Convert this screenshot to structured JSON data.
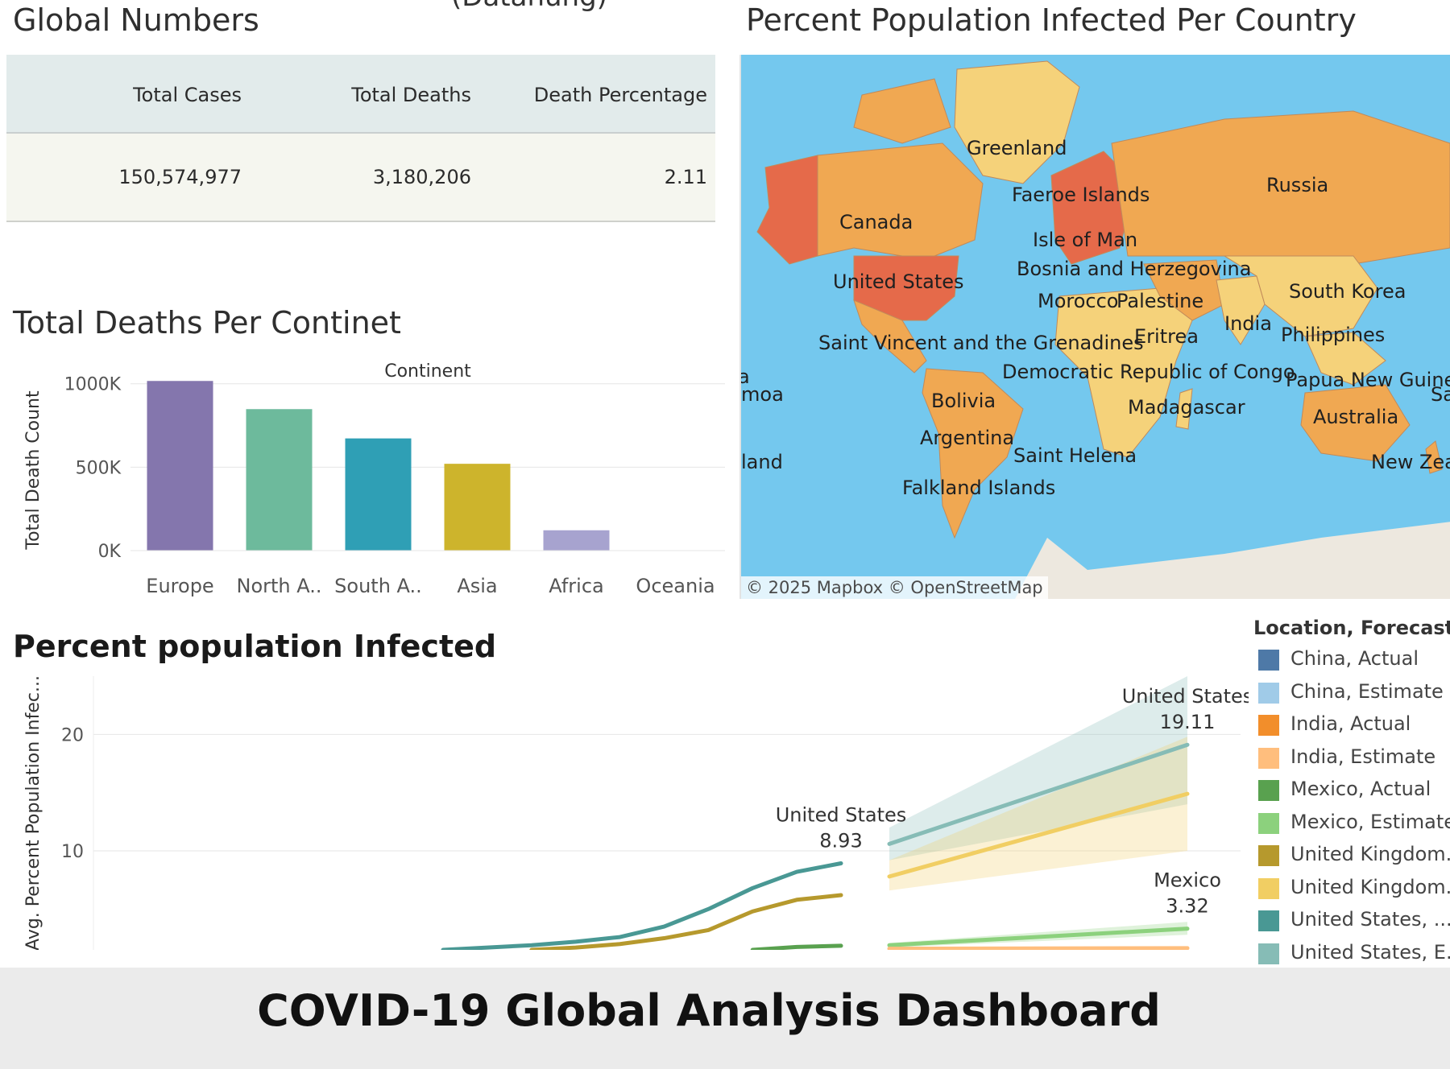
{
  "top_cut_text": "(Datahung)",
  "global_numbers": {
    "title": "Global Numbers",
    "headers": [
      "Total Cases",
      "Total Deaths",
      "Death Percentage"
    ],
    "values": [
      "150,574,977",
      "3,180,206",
      "2.11"
    ]
  },
  "map": {
    "title": "Percent Population Infected Per Country",
    "credit": "© 2025 Mapbox  © OpenStreetMap",
    "labels": [
      "Greenland",
      "Russia",
      "Faeroe Islands",
      "Canada",
      "Isle of Man",
      "Bosnia and Herzegovina",
      "United States",
      "South Korea",
      "Morocco",
      "Palestine",
      "India",
      "Philippines",
      "Saint Vincent and the Grenadines",
      "Eritrea",
      "a",
      "Democratic Republic of Congo",
      "moa",
      "Papua New Guinea",
      "Sa",
      "Bolivia",
      "Madagascar",
      "Australia",
      "Argentina",
      "land",
      "Saint Helena",
      "New Zea",
      "Falkland Islands"
    ],
    "colors": {
      "ocean": "#74c8ee",
      "low": "#f5d27a",
      "mid": "#f0a852",
      "high": "#e56a4a"
    }
  },
  "chart_data": [
    {
      "type": "bar",
      "title": "Total Deaths Per Continet",
      "header": "Continent",
      "ylabel": "Total Death Count",
      "categories": [
        "Europe",
        "North A..",
        "South A..",
        "Asia",
        "Africa",
        "Oceania"
      ],
      "values": [
        1016750,
        847942,
        672415,
        520286,
        121784,
        1046
      ],
      "colors": [
        "#8476ad",
        "#6dba9c",
        "#2f9fb5",
        "#cdb42c",
        "#a7a3cf",
        "#9ec5e8"
      ],
      "yticks": [
        "1000K",
        "500K",
        "0K"
      ],
      "ytick_values": [
        1000000,
        500000,
        0
      ],
      "ylim": [
        0,
        1100000
      ],
      "grid": true
    },
    {
      "type": "line",
      "title": "Percent population Infected",
      "ylabel": "Avg. Percent Population Infec...",
      "yticks": [
        "20",
        "10"
      ],
      "ytick_values": [
        20,
        10
      ],
      "ylim": [
        1.5,
        25
      ],
      "x_range": [
        0,
        15
      ],
      "legend_title": "Location, Forecast i...",
      "legend_placement": "right",
      "legend": [
        {
          "label": "China, Actual",
          "color": "#4e79a7"
        },
        {
          "label": "China, Estimate",
          "color": "#a0cbe8"
        },
        {
          "label": "India, Actual",
          "color": "#f28e2b"
        },
        {
          "label": "India, Estimate",
          "color": "#ffbe7d"
        },
        {
          "label": "Mexico, Actual",
          "color": "#59a14f"
        },
        {
          "label": "Mexico, Estimate",
          "color": "#8cd17d"
        },
        {
          "label": "United Kingdom...",
          "color": "#b6992d"
        },
        {
          "label": "United Kingdom...",
          "color": "#f1ce63"
        },
        {
          "label": "United States, ...",
          "color": "#499894"
        },
        {
          "label": "United States, E...",
          "color": "#86bcb6"
        }
      ],
      "series": [
        {
          "color": "#499894",
          "x": [
            0,
            1,
            2,
            3,
            4,
            5,
            6,
            7,
            8,
            9
          ],
          "y": [
            1.5,
            1.7,
            1.9,
            2.2,
            2.6,
            3.5,
            5.0,
            6.8,
            8.2,
            8.93
          ]
        },
        {
          "color": "#b6992d",
          "x": [
            2,
            3,
            4,
            5,
            6,
            7,
            8,
            9
          ],
          "y": [
            1.5,
            1.7,
            2.0,
            2.5,
            3.2,
            4.8,
            5.8,
            6.2
          ]
        },
        {
          "color": "#59a14f",
          "x": [
            7,
            8,
            9
          ],
          "y": [
            1.5,
            1.75,
            1.85
          ]
        },
        {
          "color": "#86bcb6",
          "x": [
            10,
            15
          ],
          "y": [
            10.6,
            19.11
          ],
          "band": [
            [
              9.2,
              12.0
            ],
            [
              14.0,
              25.0
            ]
          ]
        },
        {
          "color": "#f1ce63",
          "x": [
            10,
            15
          ],
          "y": [
            7.8,
            14.9
          ],
          "band": [
            [
              6.6,
              9.2
            ],
            [
              10.0,
              19.8
            ]
          ]
        },
        {
          "color": "#8cd17d",
          "x": [
            10,
            15
          ],
          "y": [
            1.9,
            3.32
          ],
          "band": [
            [
              1.7,
              2.1
            ],
            [
              2.8,
              3.9
            ]
          ]
        },
        {
          "color": "#ffbe7d",
          "x": [
            10,
            15
          ],
          "y": [
            1.6,
            1.65
          ]
        }
      ],
      "annotations": [
        {
          "label": "United States",
          "value": "8.93",
          "x": 9,
          "y": 8.93
        },
        {
          "label": "United States",
          "value": "19.11",
          "x": 15,
          "y": 19.11
        },
        {
          "label": "Mexico",
          "value": "3.32",
          "x": 15,
          "y": 3.32
        }
      ]
    }
  ],
  "footer": {
    "title": "COVID-19 Global Analysis Dashboard"
  }
}
